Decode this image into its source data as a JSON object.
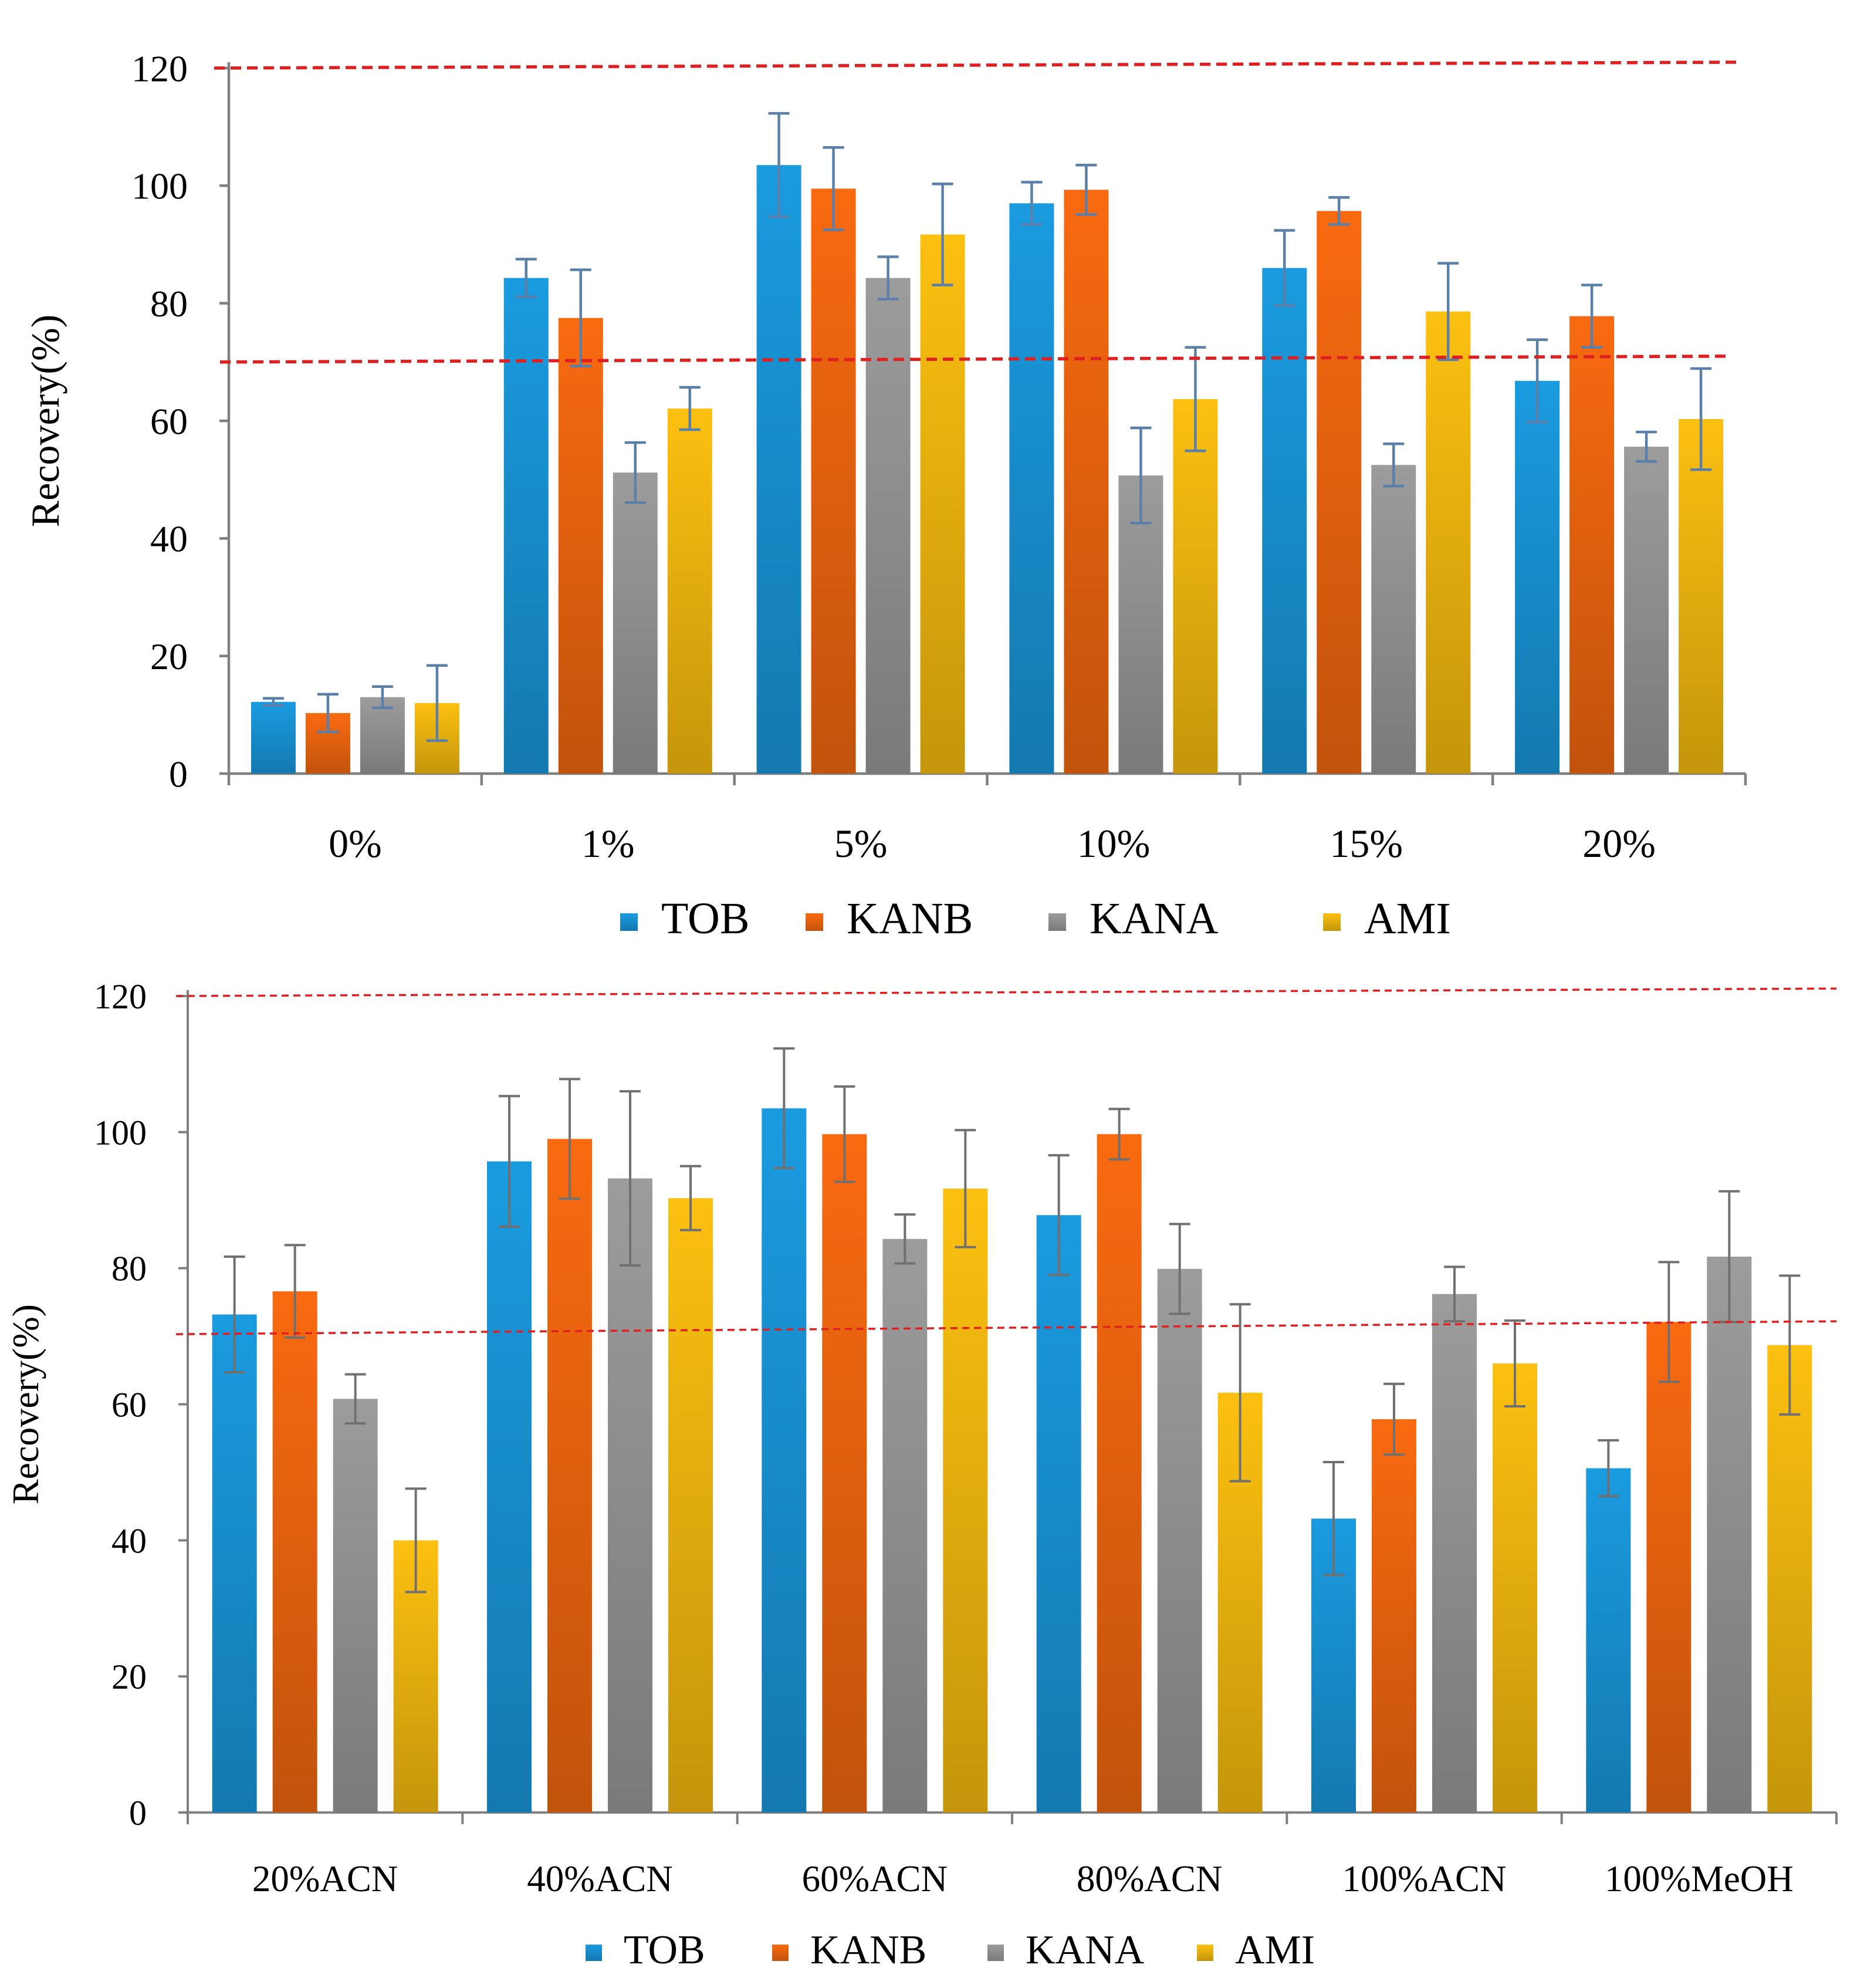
{
  "colors": {
    "TOB": "#1a9be0",
    "KANB": "#f96a10",
    "KANA": "#9c9c9c",
    "AMI": "#fcc010",
    "threshold": "#e02020",
    "error_bar_top": "#5a7fa8",
    "error_bar_bottom": "#707070",
    "axis": "#808080"
  },
  "chart_data": [
    {
      "type": "bar",
      "title": "",
      "xlabel": "",
      "ylabel": "Recovery(%)",
      "ylim": [
        0,
        120
      ],
      "yticks": [
        0,
        20,
        40,
        60,
        80,
        100,
        120
      ],
      "grid": false,
      "legend_position": "bottom",
      "categories": [
        "0%",
        "1%",
        "5%",
        "10%",
        "15%",
        "20%"
      ],
      "series": [
        {
          "name": "TOB",
          "values": [
            12.2,
            84.3,
            103.5,
            97.0,
            86.0,
            66.8
          ],
          "errors": [
            0.6,
            3.2,
            8.8,
            3.6,
            6.4,
            7.0
          ]
        },
        {
          "name": "KANB",
          "values": [
            10.3,
            77.5,
            99.5,
            99.3,
            95.7,
            77.8
          ],
          "errors": [
            3.2,
            8.2,
            7.0,
            4.2,
            2.3,
            5.3
          ]
        },
        {
          "name": "KANA",
          "values": [
            13.0,
            51.2,
            84.3,
            50.7,
            52.5,
            55.6
          ],
          "errors": [
            1.8,
            5.1,
            3.6,
            8.1,
            3.6,
            2.5
          ]
        },
        {
          "name": "AMI",
          "values": [
            12.0,
            62.1,
            91.7,
            63.7,
            78.6,
            60.3
          ],
          "errors": [
            6.4,
            3.6,
            8.6,
            8.8,
            8.2,
            8.6
          ]
        }
      ],
      "reference_lines": [
        {
          "y_start": 70,
          "y_end": 71
        },
        {
          "y_start": 120,
          "y_end": 121
        }
      ]
    },
    {
      "type": "bar",
      "title": "",
      "xlabel": "",
      "ylabel": "Recovery(%)",
      "ylim": [
        0,
        120
      ],
      "yticks": [
        0,
        20,
        40,
        60,
        80,
        100,
        120
      ],
      "grid": false,
      "legend_position": "bottom",
      "categories": [
        "20%ACN",
        "40%ACN",
        "60%ACN",
        "80%ACN",
        "100%ACN",
        "100%MeOH"
      ],
      "series": [
        {
          "name": "TOB",
          "values": [
            73.2,
            95.7,
            103.5,
            87.8,
            43.2,
            50.6
          ],
          "errors": [
            8.5,
            9.6,
            8.8,
            8.8,
            8.3,
            4.1
          ]
        },
        {
          "name": "KANB",
          "values": [
            76.6,
            99.0,
            99.7,
            99.7,
            57.8,
            72.1
          ],
          "errors": [
            6.8,
            8.8,
            7.0,
            3.7,
            5.2,
            8.8
          ]
        },
        {
          "name": "KANA",
          "values": [
            60.8,
            93.2,
            84.3,
            79.9,
            76.2,
            81.7
          ],
          "errors": [
            3.6,
            12.8,
            3.6,
            6.6,
            4.0,
            9.6
          ]
        },
        {
          "name": "AMI",
          "values": [
            40.0,
            90.3,
            91.7,
            61.7,
            66.0,
            68.7
          ],
          "errors": [
            7.6,
            4.7,
            8.6,
            13.0,
            6.3,
            10.2
          ]
        }
      ],
      "reference_lines": [
        {
          "y_start": 70.3,
          "y_end": 72.2
        },
        {
          "y_start": 120,
          "y_end": 121.1
        }
      ]
    }
  ]
}
